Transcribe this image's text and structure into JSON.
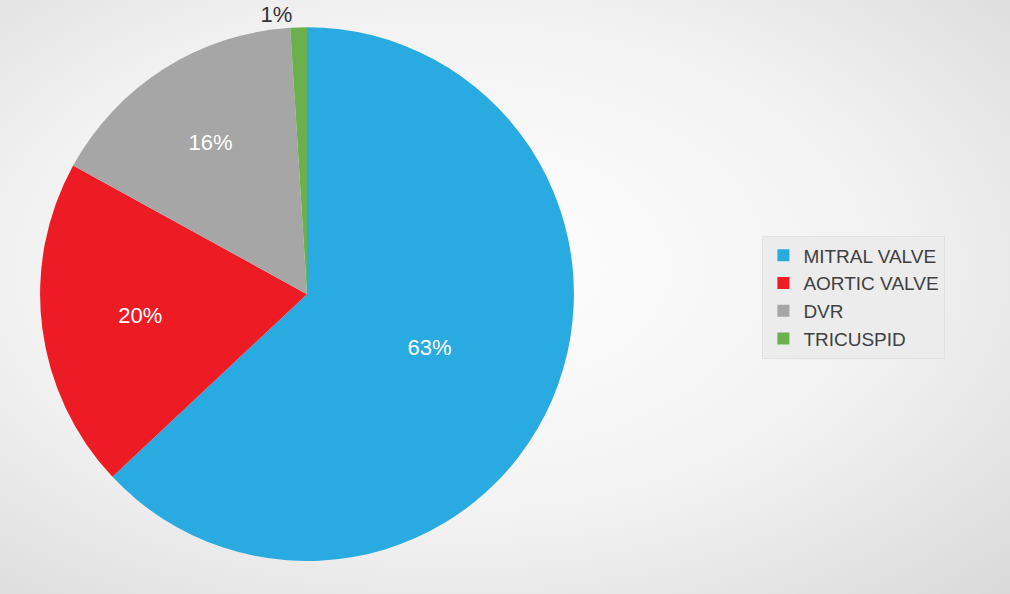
{
  "chart_data": {
    "type": "pie",
    "categories": [
      "MITRAL VALVE",
      "AORTIC VALVE",
      "DVR",
      "TRICUSPID"
    ],
    "values": [
      63,
      20,
      16,
      1
    ],
    "value_labels": [
      "63%",
      "20%",
      "16%",
      "1%"
    ],
    "colors": [
      "#29abe2",
      "#ed1c24",
      "#a6a6a6",
      "#6ab04c"
    ],
    "data_labels": true,
    "legend": "right"
  }
}
